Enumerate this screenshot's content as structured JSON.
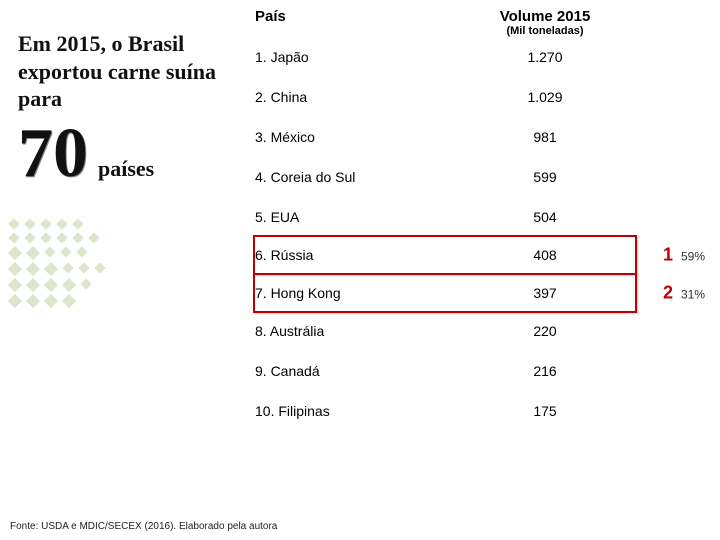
{
  "intro": {
    "line1": "Em 2015, o Brasil exportou carne suína para",
    "big_number": "70",
    "big_label": "países"
  },
  "table": {
    "header_country": "País",
    "header_volume": "Volume 2015",
    "subheader": "(Mil toneladas)",
    "rows": [
      {
        "country": "1. Japão",
        "volume": "1.270"
      },
      {
        "country": "2. China",
        "volume": "1.029"
      },
      {
        "country": "3. México",
        "volume": "981"
      },
      {
        "country": "4. Coreia do Sul",
        "volume": "599"
      },
      {
        "country": "5. EUA",
        "volume": "504"
      },
      {
        "country": "6. Rússia",
        "volume": "408"
      },
      {
        "country": "7. Hong Kong",
        "volume": "397"
      },
      {
        "country": "8. Austrália",
        "volume": "220"
      },
      {
        "country": "9. Canadá",
        "volume": "216"
      },
      {
        "country": "10. Filipinas",
        "volume": "175"
      }
    ],
    "annotations": [
      {
        "row_index": 5,
        "rank": "1",
        "pct": "59%"
      },
      {
        "row_index": 6,
        "rank": "2",
        "pct": "31%"
      }
    ],
    "highlight_color": "#c00000",
    "text_color": "#000000",
    "font_size_header": 15,
    "font_size_body": 14
  },
  "source": "Fonte: USDA e MDIC/SECEX (2016). Elaborado pela autora",
  "decor": {
    "dot_color": "#9cb86a"
  }
}
